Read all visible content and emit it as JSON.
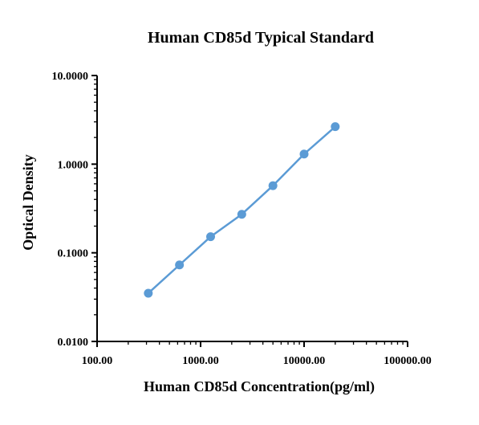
{
  "chart_data": {
    "type": "line",
    "title": "Human CD85d Typical Standard",
    "xlabel": "Human CD85d Concentration(pg/ml)",
    "ylabel": "Optical Density",
    "x_scale": "log",
    "y_scale": "log",
    "xlim": [
      100,
      100000
    ],
    "ylim": [
      0.01,
      10
    ],
    "x_tick_labels": [
      "100.00",
      "1000.00",
      "10000.00",
      "100000.00"
    ],
    "y_tick_labels": [
      "10.0000",
      "1.0000",
      "0.1000",
      "0.0100"
    ],
    "grid": false,
    "series": [
      {
        "color": "#5b9bd5",
        "x": [
          312.5,
          625,
          1250,
          2500,
          5000,
          10000,
          20000
        ],
        "y": [
          0.035,
          0.073,
          0.152,
          0.272,
          0.572,
          1.3,
          2.65
        ]
      }
    ]
  }
}
